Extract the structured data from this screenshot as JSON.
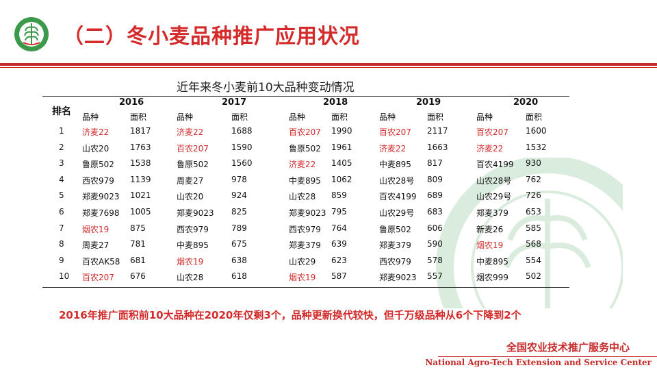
{
  "header": {
    "title": "（二）冬小麦品种推广应用状况"
  },
  "table": {
    "caption": "近年来冬小麦前10大品种变动情况",
    "rank_label": "排名",
    "sub_labels": {
      "variety": "品种",
      "area": "面积"
    },
    "years": [
      "2016",
      "2017",
      "2018",
      "2019",
      "2020"
    ],
    "rows": [
      {
        "rank": "1",
        "cells": [
          {
            "v": "济麦22",
            "a": "1817",
            "hl": true
          },
          {
            "v": "济麦22",
            "a": "1688",
            "hl": true
          },
          {
            "v": "百农207",
            "a": "1990",
            "hl": true
          },
          {
            "v": "百农207",
            "a": "2117",
            "hl": true
          },
          {
            "v": "百农207",
            "a": "1600",
            "hl": true
          }
        ]
      },
      {
        "rank": "2",
        "cells": [
          {
            "v": "山农20",
            "a": "1763",
            "hl": false
          },
          {
            "v": "百农207",
            "a": "1590",
            "hl": true
          },
          {
            "v": "鲁原502",
            "a": "1961",
            "hl": false
          },
          {
            "v": "济麦22",
            "a": "1663",
            "hl": true
          },
          {
            "v": "济麦22",
            "a": "1532",
            "hl": true
          }
        ]
      },
      {
        "rank": "3",
        "cells": [
          {
            "v": "鲁原502",
            "a": "1538",
            "hl": false
          },
          {
            "v": "鲁原502",
            "a": "1560",
            "hl": false
          },
          {
            "v": "济麦22",
            "a": "1405",
            "hl": true
          },
          {
            "v": "中麦895",
            "a": "817",
            "hl": false
          },
          {
            "v": "百农4199",
            "a": "930",
            "hl": false
          }
        ]
      },
      {
        "rank": "4",
        "cells": [
          {
            "v": "西农979",
            "a": "1139",
            "hl": false
          },
          {
            "v": "周麦27",
            "a": "978",
            "hl": false
          },
          {
            "v": "中麦895",
            "a": "1062",
            "hl": false
          },
          {
            "v": "山农28号",
            "a": "809",
            "hl": false
          },
          {
            "v": "山农28号",
            "a": "762",
            "hl": false
          }
        ]
      },
      {
        "rank": "5",
        "cells": [
          {
            "v": "郑麦9023",
            "a": "1021",
            "hl": false
          },
          {
            "v": "山农20",
            "a": "924",
            "hl": false
          },
          {
            "v": "山农28",
            "a": "859",
            "hl": false
          },
          {
            "v": "百农4199",
            "a": "689",
            "hl": false
          },
          {
            "v": "山农29号",
            "a": "726",
            "hl": false
          }
        ]
      },
      {
        "rank": "6",
        "cells": [
          {
            "v": "郑麦7698",
            "a": "1005",
            "hl": false
          },
          {
            "v": "郑麦9023",
            "a": "825",
            "hl": false
          },
          {
            "v": "郑麦9023",
            "a": "795",
            "hl": false
          },
          {
            "v": "山农29号",
            "a": "683",
            "hl": false
          },
          {
            "v": "郑麦379",
            "a": "653",
            "hl": false
          }
        ]
      },
      {
        "rank": "7",
        "cells": [
          {
            "v": "烟农19",
            "a": "875",
            "hl": true
          },
          {
            "v": "西农979",
            "a": "789",
            "hl": false
          },
          {
            "v": "西农979",
            "a": "764",
            "hl": false
          },
          {
            "v": "鲁原502",
            "a": "606",
            "hl": false
          },
          {
            "v": "新麦26",
            "a": "585",
            "hl": false
          }
        ]
      },
      {
        "rank": "8",
        "cells": [
          {
            "v": "周麦27",
            "a": "781",
            "hl": false
          },
          {
            "v": "中麦895",
            "a": "675",
            "hl": false
          },
          {
            "v": "郑麦379",
            "a": "639",
            "hl": false
          },
          {
            "v": "郑麦379",
            "a": "590",
            "hl": false
          },
          {
            "v": "烟农19",
            "a": "568",
            "hl": true
          }
        ]
      },
      {
        "rank": "9",
        "cells": [
          {
            "v": "百农AK58",
            "a": "681",
            "hl": false
          },
          {
            "v": "烟农19",
            "a": "638",
            "hl": true
          },
          {
            "v": "山农29",
            "a": "623",
            "hl": false
          },
          {
            "v": "西农979",
            "a": "578",
            "hl": false
          },
          {
            "v": "中麦895",
            "a": "554",
            "hl": false
          }
        ]
      },
      {
        "rank": "10",
        "cells": [
          {
            "v": "百农207",
            "a": "676",
            "hl": true
          },
          {
            "v": "山农28",
            "a": "618",
            "hl": false
          },
          {
            "v": "烟农19",
            "a": "587",
            "hl": true
          },
          {
            "v": "郑麦9023",
            "a": "557",
            "hl": false
          },
          {
            "v": "烟农999",
            "a": "502",
            "hl": false
          }
        ]
      }
    ]
  },
  "conclusion": "2016年推广面积前10大品种在2020年仅剩3个，品种更新换代较快，但千万级品种从6个下降到2个",
  "footer": {
    "org_cn": "全国农业技术推广服务中心",
    "org_en": "National Agro-Tech Extension and Service Center"
  },
  "colors": {
    "accent": "#d42a2a",
    "logo_green": "#3a9a4a",
    "highlight_text": "#d42a2a"
  }
}
